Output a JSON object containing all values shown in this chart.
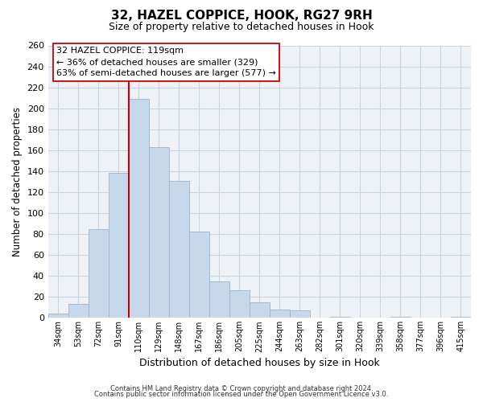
{
  "title": "32, HAZEL COPPICE, HOOK, RG27 9RH",
  "subtitle": "Size of property relative to detached houses in Hook",
  "xlabel": "Distribution of detached houses by size in Hook",
  "ylabel": "Number of detached properties",
  "bar_labels": [
    "34sqm",
    "53sqm",
    "72sqm",
    "91sqm",
    "110sqm",
    "129sqm",
    "148sqm",
    "167sqm",
    "186sqm",
    "205sqm",
    "225sqm",
    "244sqm",
    "263sqm",
    "282sqm",
    "301sqm",
    "320sqm",
    "339sqm",
    "358sqm",
    "377sqm",
    "396sqm",
    "415sqm"
  ],
  "bar_values": [
    4,
    13,
    85,
    138,
    209,
    163,
    131,
    82,
    35,
    26,
    15,
    8,
    7,
    0,
    1,
    0,
    0,
    1,
    0,
    0,
    1
  ],
  "bar_color": "#c6d8ea",
  "bar_edge_color": "#9ab4cc",
  "vline_index": 4,
  "vline_color": "#cc0000",
  "ylim": [
    0,
    260
  ],
  "yticks": [
    0,
    20,
    40,
    60,
    80,
    100,
    120,
    140,
    160,
    180,
    200,
    220,
    240,
    260
  ],
  "annotation_title": "32 HAZEL COPPICE: 119sqm",
  "annotation_line1": "← 36% of detached houses are smaller (329)",
  "annotation_line2": "63% of semi-detached houses are larger (577) →",
  "footnote1": "Contains HM Land Registry data © Crown copyright and database right 2024.",
  "footnote2": "Contains public sector information licensed under the Open Government Licence v3.0.",
  "background_color": "#ffffff",
  "grid_color": "#c8d4e0",
  "plot_bg_color": "#eef2f7"
}
